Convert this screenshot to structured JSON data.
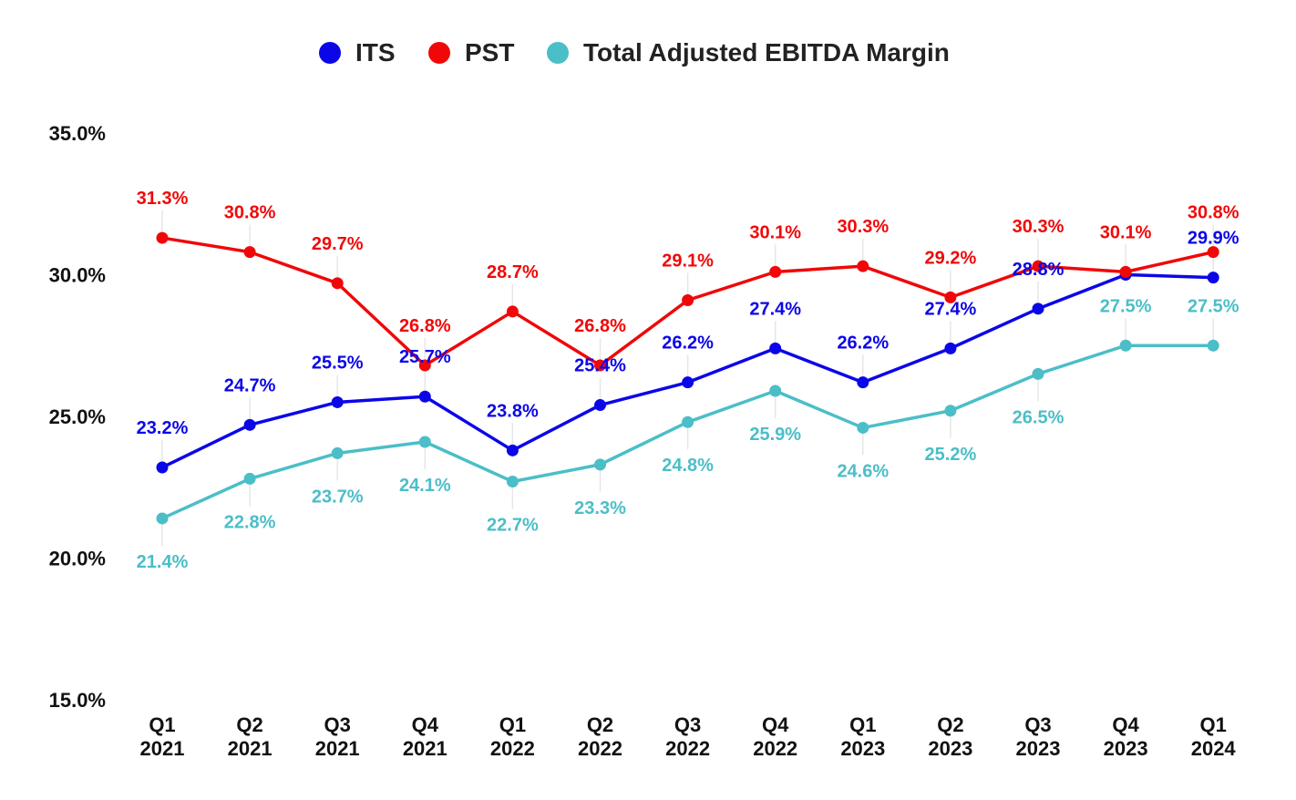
{
  "chart_data": {
    "type": "line",
    "categories": [
      [
        "Q1",
        "2021"
      ],
      [
        "Q2",
        "2021"
      ],
      [
        "Q3",
        "2021"
      ],
      [
        "Q4",
        "2021"
      ],
      [
        "Q1",
        "2022"
      ],
      [
        "Q2",
        "2022"
      ],
      [
        "Q3",
        "2022"
      ],
      [
        "Q4",
        "2022"
      ],
      [
        "Q1",
        "2023"
      ],
      [
        "Q2",
        "2023"
      ],
      [
        "Q3",
        "2023"
      ],
      [
        "Q4",
        "2023"
      ],
      [
        "Q1",
        "2024"
      ]
    ],
    "ylim": [
      15.0,
      35.0
    ],
    "yticks": [
      "15.0%",
      "20.0%",
      "25.0%",
      "30.0%",
      "35.0%"
    ],
    "ytick_values": [
      15,
      20,
      25,
      30,
      35
    ],
    "legend_position": "top-center",
    "grid": false,
    "series": [
      {
        "name": "ITS",
        "color": "#0b06e8",
        "values": [
          23.2,
          24.7,
          25.5,
          25.7,
          23.8,
          25.4,
          26.2,
          27.4,
          26.2,
          27.4,
          28.8,
          30.0,
          29.9
        ],
        "labels": [
          "23.2%",
          "24.7%",
          "25.5%",
          "25.7%",
          "23.8%",
          "25.4%",
          "26.2%",
          "27.4%",
          "26.2%",
          "27.4%",
          "28.8%",
          "",
          "29.9%"
        ]
      },
      {
        "name": "PST",
        "color": "#f00808",
        "values": [
          31.3,
          30.8,
          29.7,
          26.8,
          28.7,
          26.8,
          29.1,
          30.1,
          30.3,
          29.2,
          30.3,
          30.1,
          30.8
        ],
        "labels": [
          "31.3%",
          "30.8%",
          "29.7%",
          "26.8%",
          "28.7%",
          "26.8%",
          "29.1%",
          "30.1%",
          "30.3%",
          "29.2%",
          "30.3%",
          "30.1%",
          "30.8%"
        ]
      },
      {
        "name": "Total Adjusted EBITDA Margin",
        "color": "#4bbec8",
        "values": [
          21.4,
          22.8,
          23.7,
          24.1,
          22.7,
          23.3,
          24.8,
          25.9,
          24.6,
          25.2,
          26.5,
          27.5,
          27.5
        ],
        "labels": [
          "21.4%",
          "22.8%",
          "23.7%",
          "24.1%",
          "22.7%",
          "23.3%",
          "24.8%",
          "25.9%",
          "24.6%",
          "25.2%",
          "26.5%",
          "27.5%",
          "27.5%"
        ]
      }
    ]
  }
}
